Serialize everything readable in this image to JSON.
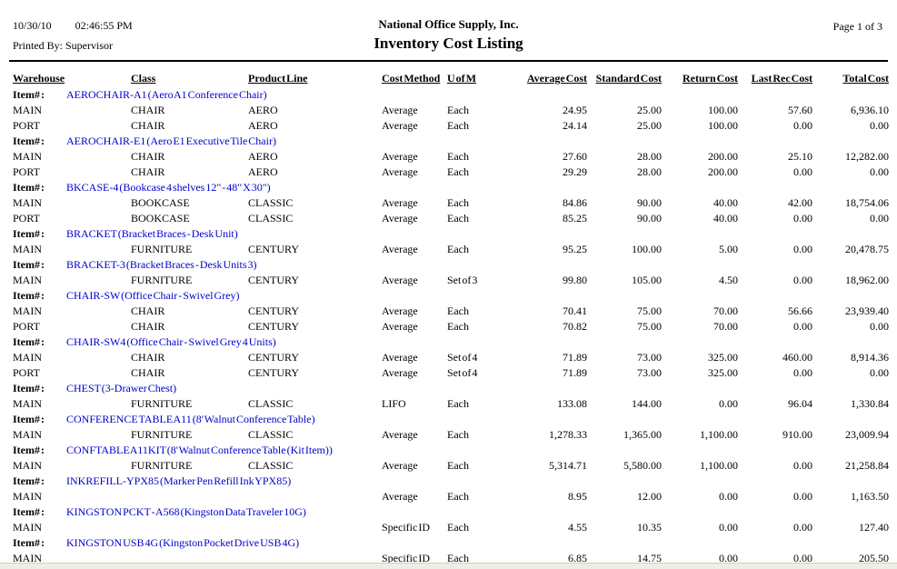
{
  "report": {
    "date": "10/30/10",
    "time": "02:46:55 PM",
    "printed_by": "Printed By: Supervisor",
    "company": "National Office Supply, Inc.",
    "title": "Inventory Cost Listing",
    "page": "Page 1 of 3"
  },
  "colors": {
    "item_link": "#0000CC"
  },
  "table": {
    "item_label": "Item# :",
    "columns": [
      "Warehouse",
      "Class",
      "Product Line",
      "Cost Method",
      "U of M",
      "Average Cost",
      "Standard Cost",
      "Return Cost",
      "Last Rec Cost",
      "Total Cost"
    ],
    "groups": [
      {
        "item": "AEROCHAIR-A1 (Aero A1 Conference Chair)",
        "rows": [
          [
            "MAIN",
            "CHAIR",
            "AERO",
            "Average",
            "Each",
            "24.95",
            "25.00",
            "100.00",
            "57.60",
            "6,936.10"
          ],
          [
            "PORT",
            "CHAIR",
            "AERO",
            "Average",
            "Each",
            "24.14",
            "25.00",
            "100.00",
            "0.00",
            "0.00"
          ]
        ]
      },
      {
        "item": "AEROCHAIR-E1 (Aero E1 Executive Tile Chair)",
        "rows": [
          [
            "MAIN",
            "CHAIR",
            "AERO",
            "Average",
            "Each",
            "27.60",
            "28.00",
            "200.00",
            "25.10",
            "12,282.00"
          ],
          [
            "PORT",
            "CHAIR",
            "AERO",
            "Average",
            "Each",
            "29.29",
            "28.00",
            "200.00",
            "0.00",
            "0.00"
          ]
        ]
      },
      {
        "item": "BKCASE-4 (Bookcase 4 shelves 12\" - 48\" X 30\")",
        "rows": [
          [
            "MAIN",
            "BOOKCASE",
            "CLASSIC",
            "Average",
            "Each",
            "84.86",
            "90.00",
            "40.00",
            "42.00",
            "18,754.06"
          ],
          [
            "PORT",
            "BOOKCASE",
            "CLASSIC",
            "Average",
            "Each",
            "85.25",
            "90.00",
            "40.00",
            "0.00",
            "0.00"
          ]
        ]
      },
      {
        "item": "BRACKET (Bracket Braces - Desk Unit)",
        "rows": [
          [
            "MAIN",
            "FURNITURE",
            "CENTURY",
            "Average",
            "Each",
            "95.25",
            "100.00",
            "5.00",
            "0.00",
            "20,478.75"
          ]
        ]
      },
      {
        "item": "BRACKET-3 (Bracket Braces - Desk Units 3)",
        "rows": [
          [
            "MAIN",
            "FURNITURE",
            "CENTURY",
            "Average",
            "Set of 3",
            "99.80",
            "105.00",
            "4.50",
            "0.00",
            "18,962.00"
          ]
        ]
      },
      {
        "item": "CHAIR-SW (Office Chair - Swivel Grey)",
        "rows": [
          [
            "MAIN",
            "CHAIR",
            "CENTURY",
            "Average",
            "Each",
            "70.41",
            "75.00",
            "70.00",
            "56.66",
            "23,939.40"
          ],
          [
            "PORT",
            "CHAIR",
            "CENTURY",
            "Average",
            "Each",
            "70.82",
            "75.00",
            "70.00",
            "0.00",
            "0.00"
          ]
        ]
      },
      {
        "item": "CHAIR-SW4 (Office Chair - Swivel Grey 4 Units)",
        "rows": [
          [
            "MAIN",
            "CHAIR",
            "CENTURY",
            "Average",
            "Set of 4",
            "71.89",
            "73.00",
            "325.00",
            "460.00",
            "8,914.36"
          ],
          [
            "PORT",
            "CHAIR",
            "CENTURY",
            "Average",
            "Set of 4",
            "71.89",
            "73.00",
            "325.00",
            "0.00",
            "0.00"
          ]
        ]
      },
      {
        "item": "CHEST (3-Drawer Chest)",
        "rows": [
          [
            "MAIN",
            "FURNITURE",
            "CLASSIC",
            "LIFO",
            "Each",
            "133.08",
            "144.00",
            "0.00",
            "96.04",
            "1,330.84"
          ]
        ]
      },
      {
        "item": "CONFERENCE TABLE A11 (8' Walnut Conference Table)",
        "rows": [
          [
            "MAIN",
            "FURNITURE",
            "CLASSIC",
            "Average",
            "Each",
            "1,278.33",
            "1,365.00",
            "1,100.00",
            "910.00",
            "23,009.94"
          ]
        ]
      },
      {
        "item": "CONFTABLEA11KIT (8' Walnut Conference Table (Kit Item))",
        "rows": [
          [
            "MAIN",
            "FURNITURE",
            "CLASSIC",
            "Average",
            "Each",
            "5,314.71",
            "5,580.00",
            "1,100.00",
            "0.00",
            "21,258.84"
          ]
        ]
      },
      {
        "item": "INKREFILL-YPX85 (Marker Pen Refill Ink YPX85)",
        "rows": [
          [
            "MAIN",
            "",
            "",
            "Average",
            "Each",
            "8.95",
            "12.00",
            "0.00",
            "0.00",
            "1,163.50"
          ]
        ]
      },
      {
        "item": "KINGSTON PCKT - A568 (Kingston Data Traveler 10G)",
        "rows": [
          [
            "MAIN",
            "",
            "",
            "Specific ID",
            "Each",
            "4.55",
            "10.35",
            "0.00",
            "0.00",
            "127.40"
          ]
        ]
      },
      {
        "item": "KINGSTON USB 4G (Kingston Pocket Drive USB 4G)",
        "rows": [
          [
            "MAIN",
            "",
            "",
            "Specific ID",
            "Each",
            "6.85",
            "14.75",
            "0.00",
            "0.00",
            "205.50"
          ]
        ]
      }
    ]
  }
}
